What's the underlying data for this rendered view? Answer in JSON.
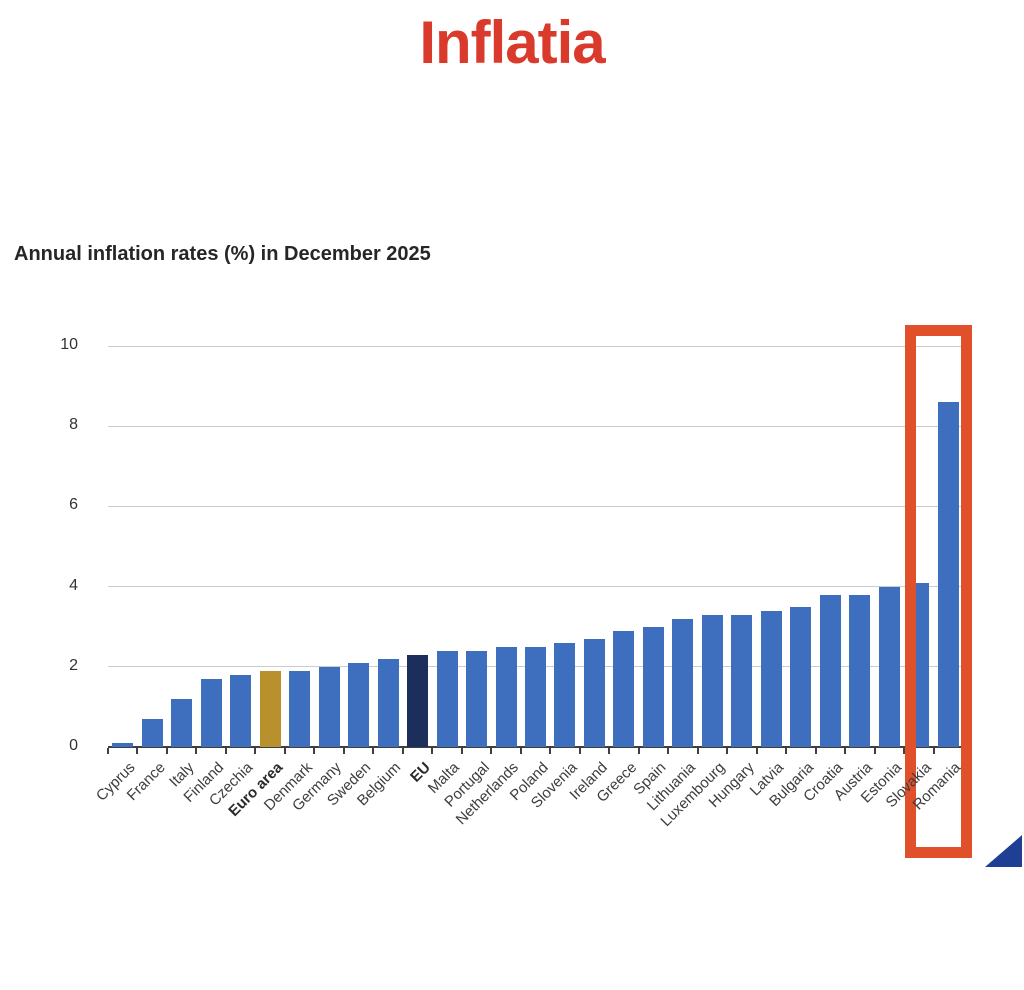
{
  "page": {
    "title": "Inflatia",
    "title_color": "#d93a2b"
  },
  "chart_data": {
    "type": "bar",
    "title": "Annual inflation rates (%) in December 2025",
    "categories": [
      "Cyprus",
      "France",
      "Italy",
      "Finland",
      "Czechia",
      "Euro area",
      "Denmark",
      "Germany",
      "Sweden",
      "Belgium",
      "EU",
      "Malta",
      "Portugal",
      "Netherlands",
      "Poland",
      "Slovenia",
      "Ireland",
      "Greece",
      "Spain",
      "Lithuania",
      "Luxembourg",
      "Hungary",
      "Latvia",
      "Bulgaria",
      "Croatia",
      "Austria",
      "Estonia",
      "Slovakia",
      "Romania"
    ],
    "values": [
      0.1,
      0.7,
      1.2,
      1.7,
      1.8,
      1.9,
      1.9,
      2.0,
      2.1,
      2.2,
      2.3,
      2.4,
      2.4,
      2.5,
      2.5,
      2.6,
      2.7,
      2.9,
      3.0,
      3.2,
      3.3,
      3.3,
      3.4,
      3.5,
      3.8,
      3.8,
      4.0,
      4.1,
      8.6
    ],
    "xlabel": "",
    "ylabel": "",
    "ylim": [
      0,
      10
    ],
    "yticks": [
      0,
      2,
      4,
      6,
      8,
      10
    ],
    "grid": true,
    "legend_position": "none",
    "bar_color_default": "#3e6fbe",
    "special_bar_colors": {
      "Euro area": "#b8902c",
      "EU": "#1b2e5c"
    },
    "bold_categories": [
      "Euro area",
      "EU"
    ],
    "highlight": {
      "category": "Romania",
      "color": "#e0502a"
    }
  },
  "decorations": {
    "corner_triangle_color": "#1e3f94"
  }
}
